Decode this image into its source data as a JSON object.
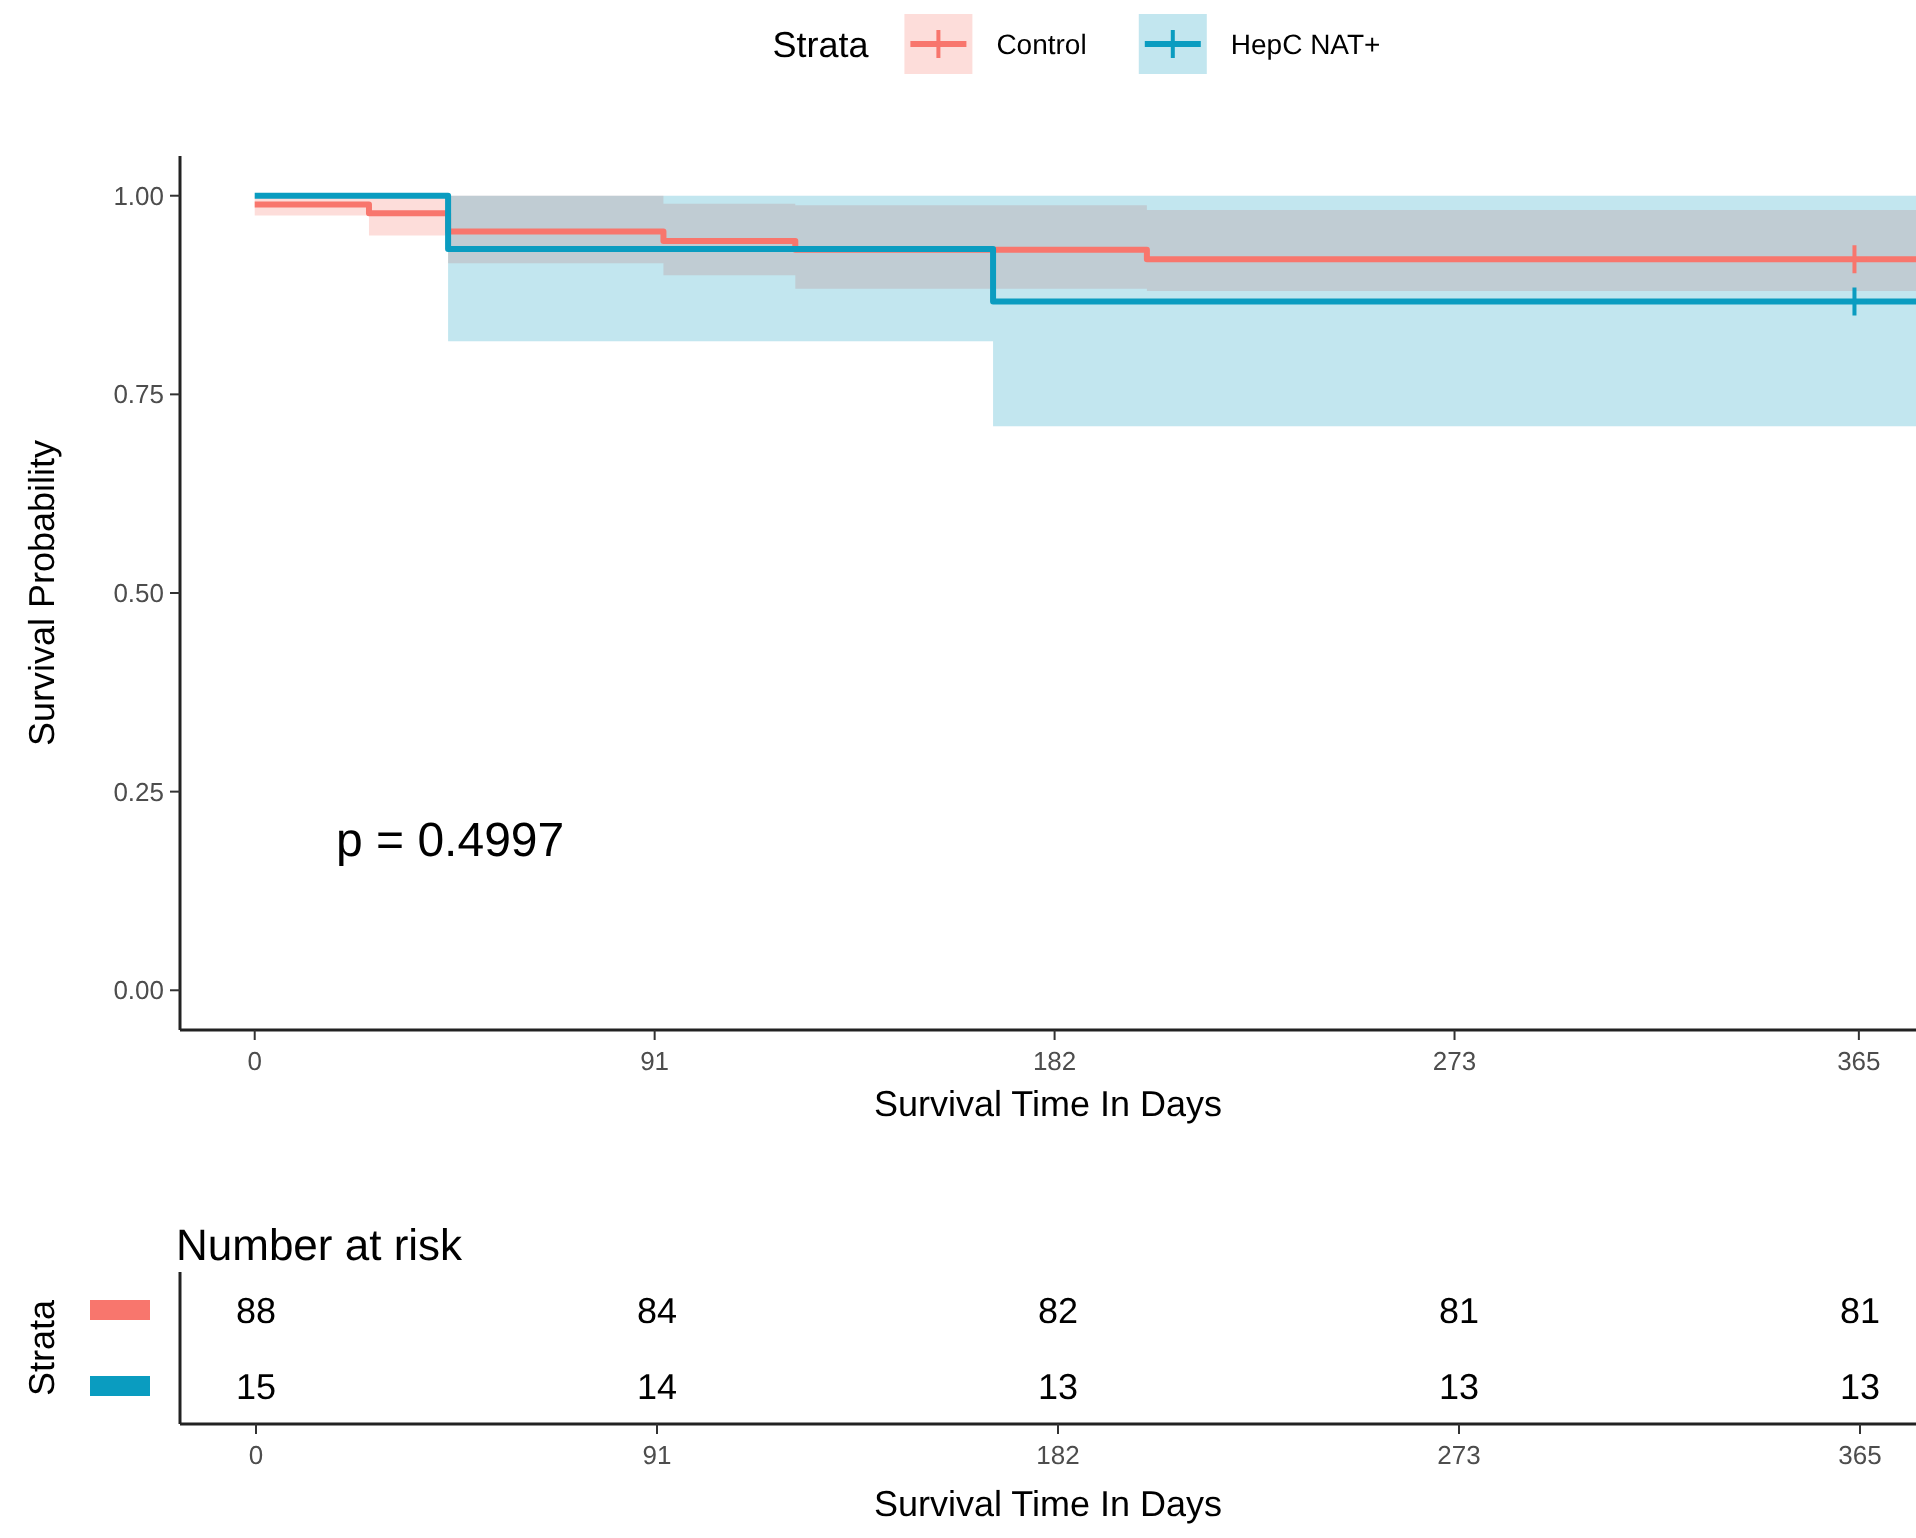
{
  "chart_data": [
    {
      "type": "step",
      "xlabel": "Survival Time In Days",
      "ylabel": "Survival Probability",
      "legend_title": "Strata",
      "legend": "top",
      "grid": false,
      "line_style": "solid",
      "xlim": [
        -17,
        378
      ],
      "ylim": [
        -0.05,
        1.05
      ],
      "xticks": [
        0,
        91,
        182,
        273,
        365
      ],
      "yticks": [
        {
          "value": 0,
          "label": "0.00"
        },
        {
          "value": 0.25,
          "label": "0.25"
        },
        {
          "value": 0.5,
          "label": "0.50"
        },
        {
          "value": 0.75,
          "label": "0.75"
        },
        {
          "value": 1,
          "label": "1.00"
        }
      ],
      "annotations": [
        "p = 0.4997"
      ],
      "series": [
        {
          "name": "Control",
          "color": "#f8766d",
          "x": [
            0,
            26,
            44,
            93,
            123,
            203,
            378
          ],
          "values": [
            0.989,
            0.978,
            0.955,
            0.943,
            0.932,
            0.92,
            0.92
          ],
          "lower": [
            0.975,
            0.95,
            0.915,
            0.9,
            0.883,
            0.88,
            0.88
          ],
          "upper": [
            1,
            1,
            1,
            0.99,
            0.988,
            0.982,
            0.982
          ]
        },
        {
          "name": "HepC NAT+",
          "color": "#0a9cc0",
          "x": [
            0,
            44,
            168,
            378
          ],
          "values": [
            1,
            0.933,
            0.867,
            0.867
          ],
          "lower": [
            1,
            0.817,
            0.71,
            0.71
          ],
          "upper": [
            1,
            1,
            1,
            1
          ]
        },
        {
          "type": "scatter",
          "marker": "cross",
          "color": "#f8766d",
          "x": [
            364
          ],
          "values": [
            0.92
          ]
        },
        {
          "type": "scatter",
          "marker": "cross",
          "color": "#0a9cc0",
          "x": [
            364
          ],
          "values": [
            0.867
          ]
        }
      ]
    },
    {
      "type": "heatmap",
      "title": "Number at risk",
      "ylabel": "Strata",
      "xlabel": "Survival Time In Days",
      "categories": [
        "0",
        "91",
        "182",
        "273",
        "365"
      ],
      "y_categories": [
        null,
        null
      ],
      "colors": [
        "#f8766d",
        "#0a9cc0"
      ],
      "data_labels": true,
      "cells": [
        [
          88,
          84,
          82,
          81,
          81
        ],
        [
          15,
          14,
          13,
          13,
          13
        ]
      ]
    }
  ]
}
